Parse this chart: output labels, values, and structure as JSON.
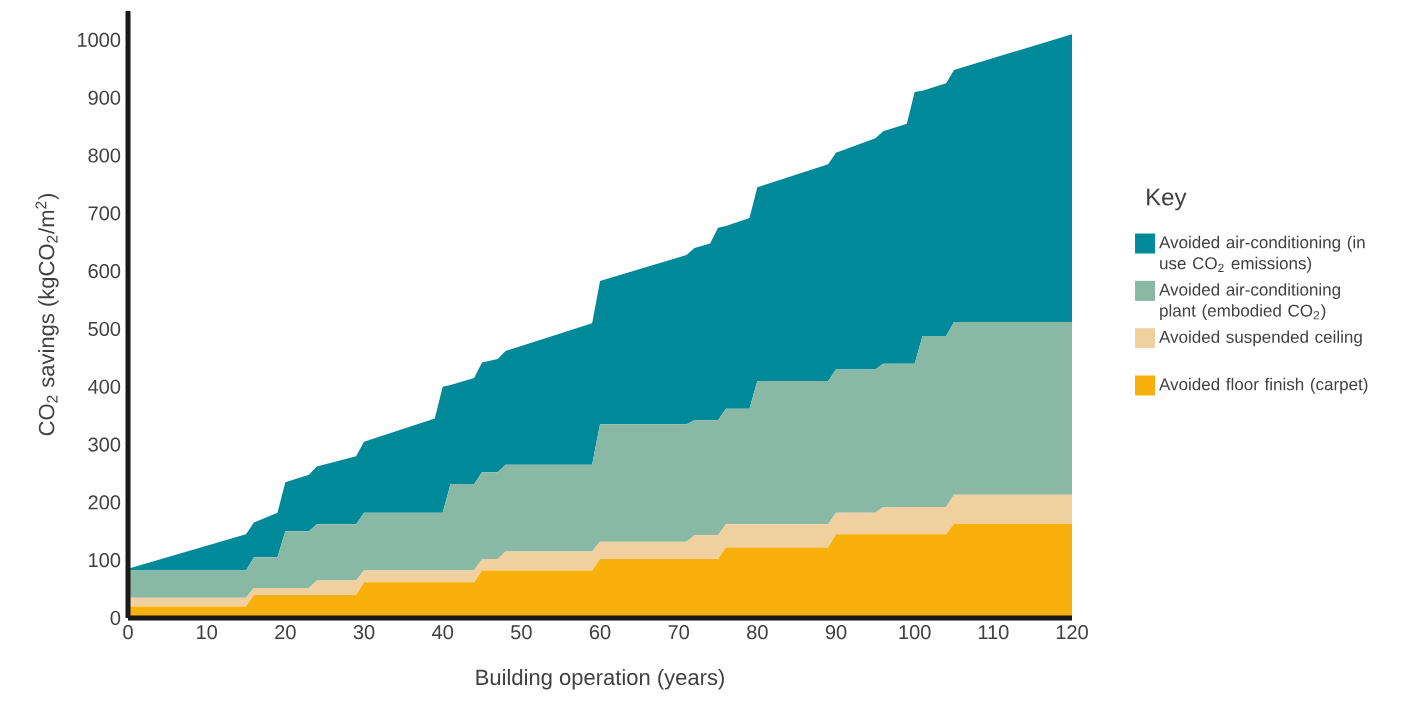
{
  "chart_data": {
    "type": "area",
    "stacked": true,
    "xlabel": "Building operation (years)",
    "ylabel": "CO$_{2}$ savings (kgCO$_{2}$/m$^{2}$)",
    "legend_title": "Key",
    "legend": "right",
    "x": [
      0,
      15,
      16,
      19,
      20,
      23,
      24,
      29,
      30,
      39,
      40,
      41,
      44,
      45,
      47,
      48,
      59,
      60,
      71,
      72,
      74,
      75,
      76,
      79,
      80,
      89,
      90,
      95,
      96,
      99,
      100,
      101,
      104,
      105,
      120
    ],
    "series": [
      {
        "name": "Avoided floor finish (carpet)",
        "color": "#f7b10a",
        "values": [
          20,
          20,
          40,
          40,
          40,
          40,
          40,
          40,
          62,
          62,
          62,
          62,
          62,
          82,
          82,
          82,
          82,
          102,
          102,
          102,
          102,
          102,
          122,
          122,
          122,
          122,
          145,
          145,
          145,
          145,
          145,
          145,
          145,
          163,
          163
        ]
      },
      {
        "name": "Avoided suspended ceiling",
        "color": "#f0d09e",
        "values": [
          15,
          15,
          12,
          12,
          12,
          12,
          25,
          25,
          20,
          20,
          20,
          20,
          20,
          20,
          20,
          33,
          33,
          30,
          30,
          41,
          41,
          41,
          40,
          40,
          40,
          40,
          37,
          37,
          47,
          47,
          47,
          47,
          47,
          50,
          50
        ]
      },
      {
        "name": "Avoided air-conditioning plant (embodied CO$_{2}$)",
        "color": "#89b8a5",
        "values": [
          47,
          47,
          53,
          53,
          98,
          98,
          97,
          97,
          100,
          100,
          100,
          150,
          150,
          150,
          150,
          150,
          150,
          203,
          203,
          199,
          199,
          199,
          200,
          200,
          248,
          248,
          248,
          248,
          248,
          248,
          248,
          296,
          296,
          299,
          299
        ]
      },
      {
        "name": "Avoided air-conditioning (in use CO$_{2}$ emissions)",
        "color": "#008999",
        "values": [
          3,
          63,
          60,
          77,
          85,
          98,
          100,
          118,
          123,
          163,
          218,
          171,
          183,
          190,
          196,
          197,
          245,
          248,
          293,
          298,
          306,
          333,
          316,
          330,
          335,
          375,
          375,
          400,
          402,
          415,
          470,
          424,
          437,
          436,
          498
        ]
      }
    ],
    "xlim": [
      0,
      120
    ],
    "xticks": [
      0,
      10,
      20,
      30,
      40,
      50,
      60,
      70,
      80,
      90,
      100,
      110,
      120
    ],
    "ylim": [
      0,
      1050
    ],
    "yticks": [
      0,
      100,
      200,
      300,
      400,
      500,
      600,
      700,
      800,
      900,
      1000
    ]
  }
}
